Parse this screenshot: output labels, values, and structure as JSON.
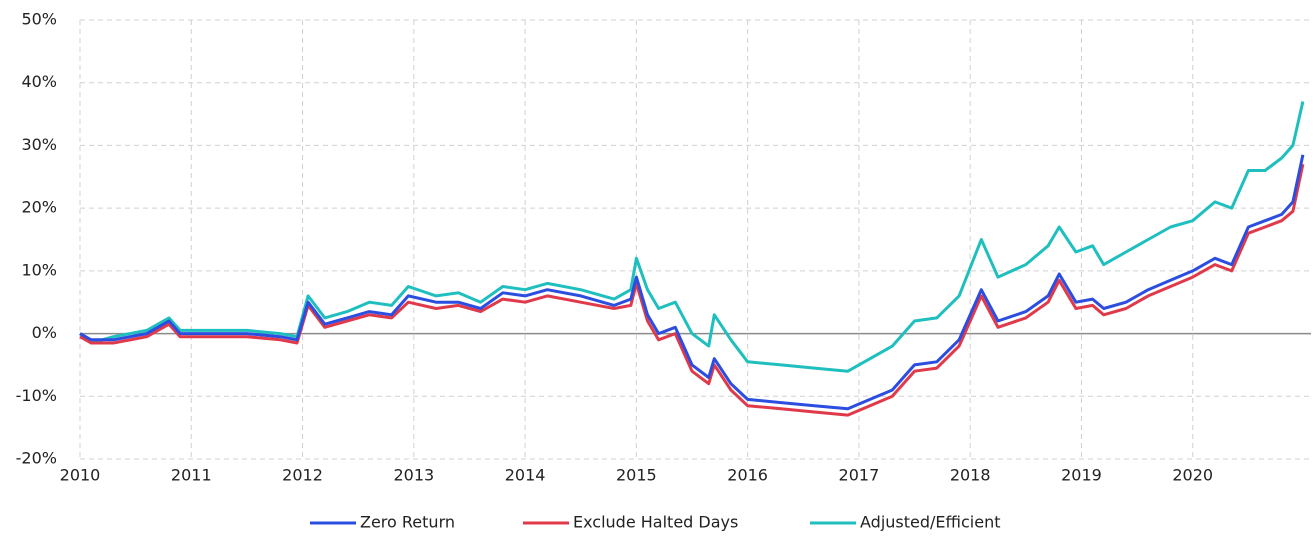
{
  "chart_data": {
    "type": "line",
    "x": [
      2010,
      2010.1,
      2010.3,
      2010.6,
      2010.8,
      2010.9,
      2011.2,
      2011.5,
      2011.8,
      2011.95,
      2012.05,
      2012.2,
      2012.4,
      2012.6,
      2012.8,
      2012.95,
      2013.2,
      2013.4,
      2013.6,
      2013.8,
      2014.0,
      2014.2,
      2014.5,
      2014.8,
      2014.95,
      2015.0,
      2015.1,
      2015.2,
      2015.35,
      2015.5,
      2015.65,
      2015.7,
      2015.85,
      2016.0,
      2016.3,
      2016.6,
      2016.9,
      2017.1,
      2017.3,
      2017.5,
      2017.7,
      2017.9,
      2018.1,
      2018.25,
      2018.5,
      2018.7,
      2018.8,
      2018.95,
      2019.1,
      2019.2,
      2019.4,
      2019.6,
      2019.8,
      2020.0,
      2020.2,
      2020.35,
      2020.5,
      2020.65,
      2020.8,
      2020.9,
      2020.99
    ],
    "series": [
      {
        "name": "Zero Return",
        "color": "#2b4de0",
        "values": [
          0,
          -1,
          -1,
          0,
          2,
          0,
          0,
          0,
          -0.5,
          -1,
          5,
          1.5,
          2.5,
          3.5,
          3,
          6,
          5,
          5,
          4,
          6.5,
          6,
          7,
          6,
          4.5,
          5.5,
          9,
          3,
          0,
          1,
          -5,
          -7,
          -4,
          -8,
          -10.5,
          -11,
          -11.5,
          -12,
          -10.5,
          -9,
          -5,
          -4.5,
          -1,
          7,
          2,
          3.5,
          6,
          9.5,
          5,
          5.5,
          4,
          5,
          7,
          8.5,
          10,
          12,
          11,
          17,
          18,
          19,
          21,
          28.5
        ]
      },
      {
        "name": "Exclude Halted Days",
        "color": "#e03a4a",
        "values": [
          -0.5,
          -1.5,
          -1.5,
          -0.5,
          1.5,
          -0.5,
          -0.5,
          -0.5,
          -1,
          -1.5,
          4.5,
          1,
          2,
          3,
          2.5,
          5,
          4,
          4.5,
          3.5,
          5.5,
          5,
          6,
          5,
          4,
          4.5,
          8,
          2,
          -1,
          0,
          -6,
          -8,
          -5,
          -9,
          -11.5,
          -12,
          -12.5,
          -13,
          -11.5,
          -10,
          -6,
          -5.5,
          -2,
          6,
          1,
          2.5,
          5,
          8.5,
          4,
          4.5,
          3,
          4,
          6,
          7.5,
          9,
          11,
          10,
          16,
          17,
          18,
          19.5,
          27
        ]
      },
      {
        "name": "Adjusted/Efficient",
        "color": "#1fbfbf",
        "values": [
          0,
          -1.5,
          -0.5,
          0.5,
          2.5,
          0.5,
          0.5,
          0.5,
          0,
          -0.5,
          6,
          2.5,
          3.5,
          5,
          4.5,
          7.5,
          6,
          6.5,
          5,
          7.5,
          7,
          8,
          7,
          5.5,
          7,
          12,
          7,
          4,
          5,
          0,
          -2,
          3,
          -1,
          -4.5,
          -5,
          -5.5,
          -6,
          -4,
          -2,
          2,
          2.5,
          6,
          15,
          9,
          11,
          14,
          17,
          13,
          14,
          11,
          13,
          15,
          17,
          18,
          21,
          20,
          26,
          26,
          28,
          30,
          37
        ]
      }
    ],
    "xlim": [
      2010,
      2021
    ],
    "xticks": [
      2010,
      2011,
      2012,
      2013,
      2014,
      2015,
      2016,
      2017,
      2018,
      2019,
      2020
    ],
    "ylim": [
      -20,
      50
    ],
    "yticks": [
      {
        "value": -20,
        "label": "-20%"
      },
      {
        "value": -10,
        "label": "-10%"
      },
      {
        "value": 0,
        "label": "0%"
      },
      {
        "value": 10,
        "label": "10%"
      },
      {
        "value": 20,
        "label": "20%"
      },
      {
        "value": 30,
        "label": "30%"
      },
      {
        "value": 40,
        "label": "40%"
      },
      {
        "value": 50,
        "label": "50%"
      }
    ],
    "grid": true,
    "legend": "bottom"
  }
}
